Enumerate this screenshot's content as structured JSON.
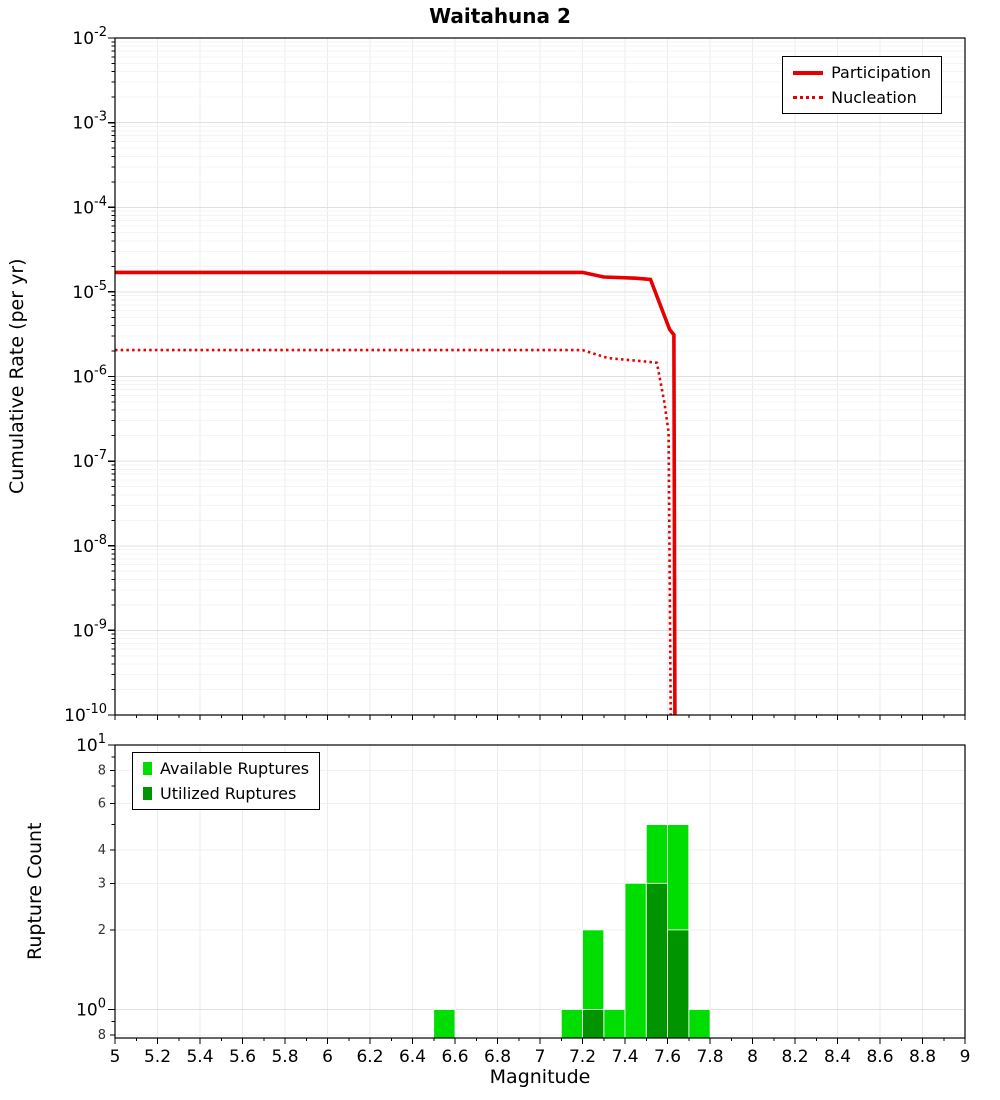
{
  "title": "Waitahuna 2",
  "chart_data": [
    {
      "type": "line",
      "title": "Waitahuna 2",
      "ylabel": "Cumulative Rate (per yr)",
      "xlabel": "",
      "xlim": [
        5,
        9
      ],
      "x_tick_step": 0.2,
      "ylim_exp": [
        -10,
        -2
      ],
      "y_scale": "log",
      "grid": true,
      "legend_position": "top-right",
      "series": [
        {
          "name": "Participation",
          "color": "#e80000",
          "style": "solid",
          "points": [
            [
              5.0,
              1.7e-05
            ],
            [
              7.2,
              1.7e-05
            ],
            [
              7.3,
              1.5e-05
            ],
            [
              7.45,
              1.45e-05
            ],
            [
              7.52,
              1.4e-05
            ],
            [
              7.61,
              3.6e-06
            ],
            [
              7.63,
              3.1e-06
            ],
            [
              7.635,
              1e-10
            ]
          ]
        },
        {
          "name": "Nucleation",
          "color": "#e80000",
          "style": "dotted",
          "points": [
            [
              5.0,
              2.05e-06
            ],
            [
              7.2,
              2.05e-06
            ],
            [
              7.32,
              1.65e-06
            ],
            [
              7.5,
              1.5e-06
            ],
            [
              7.55,
              1.45e-06
            ],
            [
              7.585,
              5e-07
            ],
            [
              7.605,
              2.2e-07
            ],
            [
              7.615,
              1e-10
            ]
          ]
        }
      ]
    },
    {
      "type": "bar",
      "title": "",
      "ylabel": "Rupture Count",
      "xlabel": "Magnitude",
      "xlim": [
        5,
        9
      ],
      "x_tick_step": 0.2,
      "ylim": [
        0.78,
        10
      ],
      "y_scale": "log",
      "bar_width": 0.1,
      "grid": true,
      "legend_position": "top-left",
      "y_ticks": [
        {
          "v": 10,
          "label": "10",
          "exp": "1",
          "major": true
        },
        {
          "v": 8,
          "label": "8"
        },
        {
          "v": 6,
          "label": "6"
        },
        {
          "v": 4,
          "label": "4"
        },
        {
          "v": 3,
          "label": "3"
        },
        {
          "v": 2,
          "label": "2"
        },
        {
          "v": 1,
          "label": "10",
          "exp": "0",
          "major": true
        },
        {
          "v": 0.8,
          "label": "8"
        }
      ],
      "y_minor_ticks": [
        9,
        7,
        5,
        0.9
      ],
      "series": [
        {
          "name": "Available Ruptures",
          "color": "#00dd00",
          "bars": [
            [
              6.55,
              1
            ],
            [
              7.15,
              1
            ],
            [
              7.25,
              2
            ],
            [
              7.35,
              1
            ],
            [
              7.45,
              3
            ],
            [
              7.55,
              5
            ],
            [
              7.65,
              5
            ],
            [
              7.75,
              1
            ]
          ]
        },
        {
          "name": "Utilized Ruptures",
          "color": "#009400",
          "bars": [
            [
              7.25,
              1
            ],
            [
              7.55,
              3
            ],
            [
              7.65,
              2
            ]
          ]
        }
      ]
    }
  ]
}
